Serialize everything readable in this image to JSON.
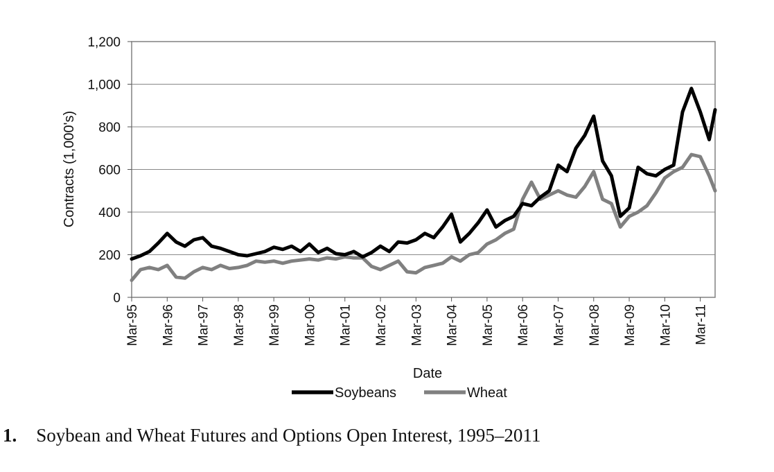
{
  "caption": {
    "number": "1.",
    "text": "Soybean and Wheat Futures and Options Open Interest, 1995–2011"
  },
  "chart_data": {
    "type": "line",
    "title": "",
    "xlabel": "Date",
    "ylabel": "Contracts (1,000's)",
    "ylim": [
      0,
      1200
    ],
    "yticks": [
      0,
      200,
      400,
      600,
      800,
      1000,
      1200
    ],
    "ytick_labels": [
      "0",
      "200",
      "400",
      "600",
      "800",
      "1,000",
      "1,200"
    ],
    "xtick_labels": [
      "Mar-95",
      "Mar-96",
      "Mar-97",
      "Mar-98",
      "Mar-99",
      "Mar-00",
      "Mar-01",
      "Mar-02",
      "Mar-03",
      "Mar-04",
      "Mar-05",
      "Mar-06",
      "Mar-07",
      "Mar-08",
      "Mar-09",
      "Mar-10",
      "Mar-11"
    ],
    "xlim": [
      "1995-03",
      "2011-08"
    ],
    "grid": true,
    "legend": "bottom",
    "x": [
      "1995-03",
      "1995-06",
      "1995-09",
      "1995-12",
      "1996-03",
      "1996-06",
      "1996-09",
      "1996-12",
      "1997-03",
      "1997-06",
      "1997-09",
      "1997-12",
      "1998-03",
      "1998-06",
      "1998-09",
      "1998-12",
      "1999-03",
      "1999-06",
      "1999-09",
      "1999-12",
      "2000-03",
      "2000-06",
      "2000-09",
      "2000-12",
      "2001-03",
      "2001-06",
      "2001-09",
      "2001-12",
      "2002-03",
      "2002-06",
      "2002-09",
      "2002-12",
      "2003-03",
      "2003-06",
      "2003-09",
      "2003-12",
      "2004-03",
      "2004-06",
      "2004-09",
      "2004-12",
      "2005-03",
      "2005-06",
      "2005-09",
      "2005-12",
      "2006-03",
      "2006-06",
      "2006-09",
      "2006-12",
      "2007-03",
      "2007-06",
      "2007-09",
      "2007-12",
      "2008-03",
      "2008-06",
      "2008-09",
      "2008-12",
      "2009-03",
      "2009-06",
      "2009-09",
      "2009-12",
      "2010-03",
      "2010-06",
      "2010-09",
      "2010-12",
      "2011-03",
      "2011-06",
      "2011-08"
    ],
    "series": [
      {
        "name": "Soybeans",
        "color": "#000000",
        "values": [
          180,
          195,
          215,
          255,
          300,
          260,
          240,
          270,
          280,
          240,
          230,
          215,
          200,
          195,
          205,
          215,
          235,
          225,
          240,
          215,
          250,
          210,
          230,
          205,
          200,
          215,
          190,
          210,
          240,
          215,
          260,
          255,
          270,
          300,
          280,
          330,
          390,
          260,
          300,
          350,
          410,
          330,
          360,
          380,
          440,
          430,
          470,
          500,
          620,
          590,
          700,
          760,
          850,
          640,
          570,
          380,
          420,
          610,
          580,
          570,
          600,
          620,
          870,
          980,
          870,
          740,
          880
        ],
        "style": "solid"
      },
      {
        "name": "Wheat",
        "color": "#808080",
        "values": [
          80,
          130,
          140,
          130,
          150,
          95,
          90,
          120,
          140,
          130,
          150,
          135,
          140,
          150,
          170,
          165,
          170,
          160,
          170,
          175,
          180,
          175,
          185,
          180,
          190,
          185,
          185,
          145,
          130,
          150,
          170,
          120,
          115,
          140,
          150,
          160,
          190,
          170,
          200,
          210,
          250,
          270,
          300,
          320,
          460,
          540,
          460,
          480,
          500,
          480,
          470,
          520,
          590,
          460,
          440,
          330,
          380,
          400,
          430,
          490,
          560,
          590,
          610,
          670,
          660,
          570,
          500
        ],
        "style": "solid"
      }
    ]
  }
}
